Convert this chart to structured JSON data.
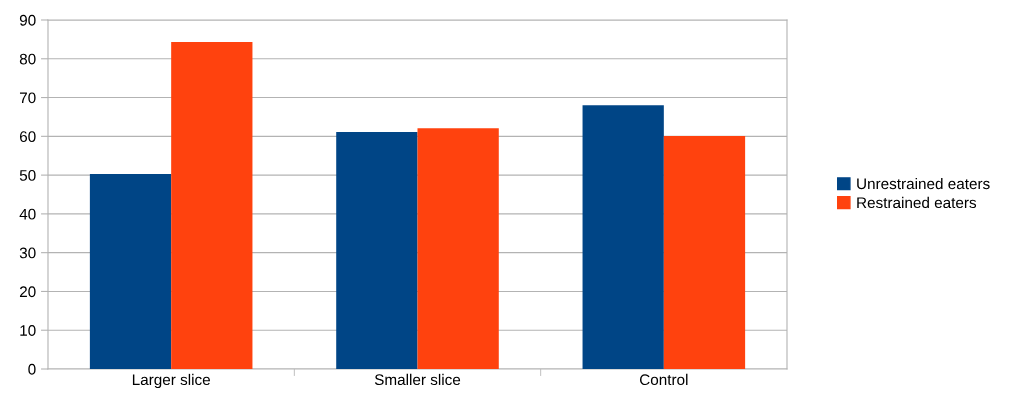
{
  "chart_data": {
    "type": "bar",
    "categories": [
      "Larger slice",
      "Smaller slice",
      "Control"
    ],
    "series": [
      {
        "name": "Unrestrained eaters",
        "color": "#004586",
        "values": [
          50.3,
          61.1,
          68
        ]
      },
      {
        "name": "Restrained eaters",
        "color": "#ff420e",
        "values": [
          84.3,
          62.1,
          60.1
        ]
      }
    ],
    "ylim": [
      0,
      90
    ],
    "yticks": [
      0,
      10,
      20,
      30,
      40,
      50,
      60,
      70,
      80,
      90
    ],
    "grid": "y",
    "legend": "right"
  }
}
